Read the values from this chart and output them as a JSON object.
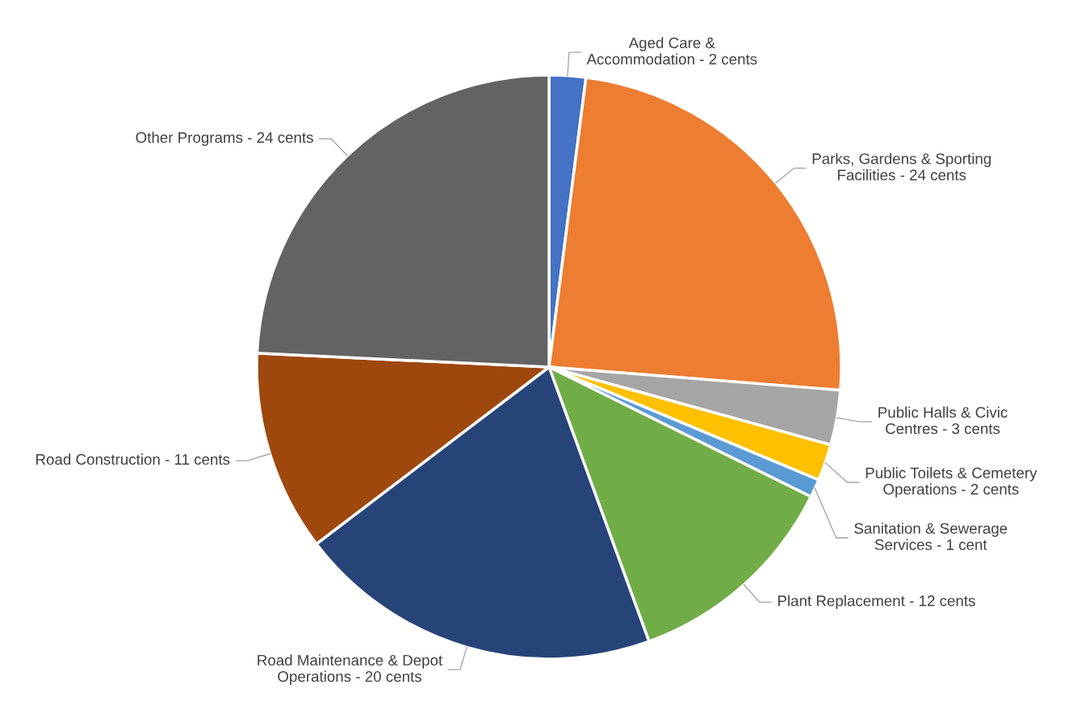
{
  "chart_data": {
    "type": "pie",
    "categories": [
      "Aged Care & Accommodation - 2 cents",
      "Parks, Gardens & Sporting Facilities - 24 cents",
      "Public Halls & Civic Centres - 3 cents",
      "Public Toilets & Cemetery Operations - 2 cents",
      "Sanitation & Sewerage Services - 1 cent",
      "Plant Replacement - 12 cents",
      "Road Maintenance & Depot Operations - 20 cents",
      "Road Construction - 11 cents",
      "Other Programs - 24 cents"
    ],
    "values": [
      2,
      24,
      3,
      2,
      1,
      12,
      20,
      11,
      24
    ],
    "colors": [
      "#4472c4",
      "#ed7d31",
      "#a5a5a5",
      "#ffc000",
      "#5b9bd5",
      "#70ad47",
      "#264478",
      "#9e480e",
      "#636363"
    ],
    "legend": false
  }
}
